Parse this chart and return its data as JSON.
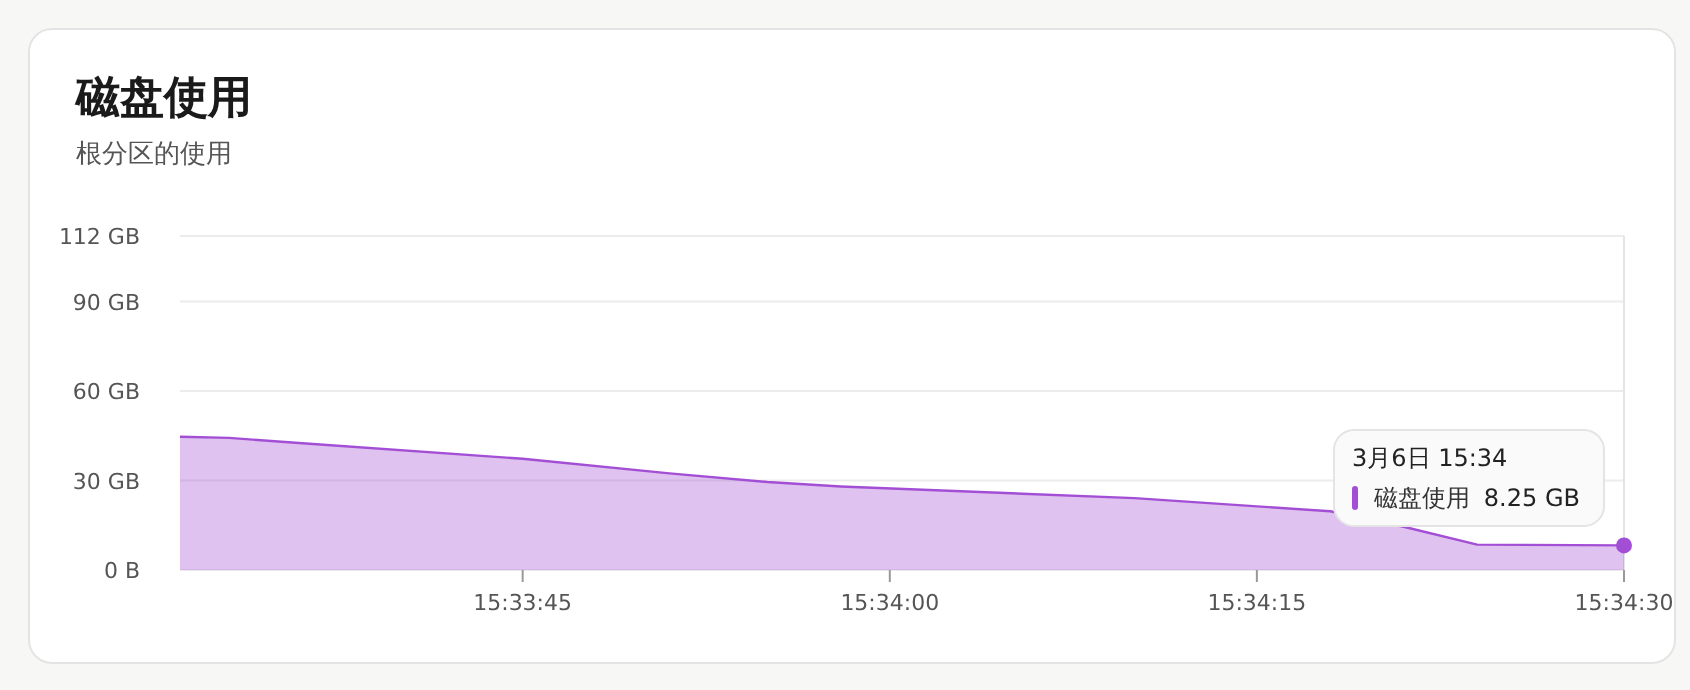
{
  "chart_data": {
    "type": "area",
    "title": "磁盘使用",
    "subtitle": "根分区的使用",
    "x": [
      15.558611,
      15.559167,
      15.56,
      15.5625,
      15.564167,
      15.565278,
      15.566111,
      15.569444,
      15.571667,
      15.5725,
      15.573333,
      15.575
    ],
    "series": [
      {
        "name": "磁盘使用",
        "color": "#a34fd5",
        "values": [
          44.7,
          44.3,
          42.5,
          37.3,
          32.4,
          29.5,
          28.0,
          24.1,
          19.7,
          14.5,
          8.5,
          8.25
        ],
        "value_labels": [
          null,
          null,
          null,
          null,
          null,
          null,
          null,
          null,
          null,
          null,
          null,
          "8.25 GB"
        ]
      }
    ],
    "annotations": [
      "3月6日 15:34"
    ],
    "xlim": [
      15.558611,
      15.575
    ],
    "xticks": [
      {
        "value": 15.5625,
        "label": "15:33:45"
      },
      {
        "value": 15.566667,
        "label": "15:34:00"
      },
      {
        "value": 15.570833,
        "label": "15:34:15"
      },
      {
        "value": 15.575,
        "label": "15:34:30"
      }
    ],
    "ylim": [
      0,
      112
    ],
    "yticks": [
      {
        "value": 0,
        "label": "0 B"
      },
      {
        "value": 30,
        "label": "30 GB"
      },
      {
        "value": 60,
        "label": "60 GB"
      },
      {
        "value": 90,
        "label": "90 GB"
      },
      {
        "value": 112,
        "label": "112 GB"
      }
    ],
    "grid": "y",
    "legend": "bottom right"
  }
}
